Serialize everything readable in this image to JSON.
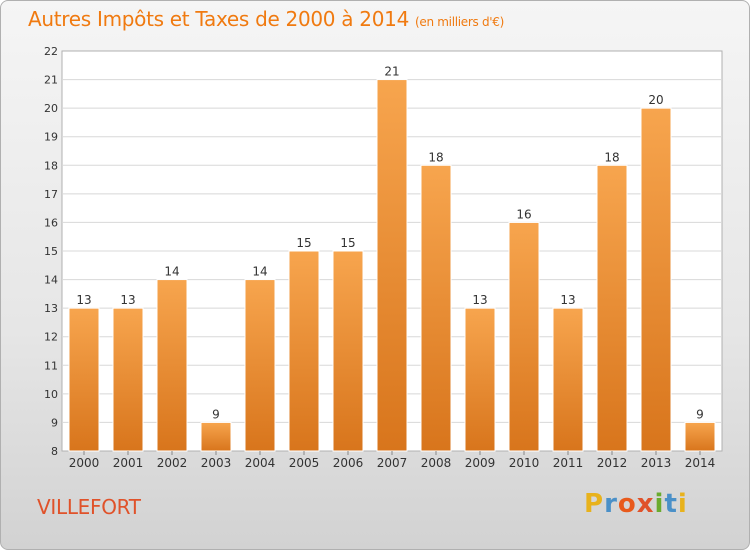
{
  "header": {
    "title": "Autres Impôts et Taxes de 2000 à 2014",
    "subtitle": "(en milliers d'€)"
  },
  "footer": {
    "city": "VILLEFORT",
    "logo": "Proxiti"
  },
  "colors": {
    "title": "#f07a10",
    "city": "#e0522a",
    "bar_light": "#f7a54e",
    "bar_dark": "#d8751c",
    "logo_letters": [
      "#e8b21c",
      "#4a90c8",
      "#e85a1c",
      "#e0522a",
      "#6aab2e",
      "#4a90c8",
      "#e8b21c"
    ]
  },
  "chart_data": {
    "type": "bar",
    "title": "Autres Impôts et Taxes de 2000 à 2014",
    "subtitle": "(en milliers d'€)",
    "categories": [
      "2000",
      "2001",
      "2002",
      "2003",
      "2004",
      "2005",
      "2006",
      "2007",
      "2008",
      "2009",
      "2010",
      "2011",
      "2012",
      "2013",
      "2014"
    ],
    "values": [
      13,
      13,
      14,
      9,
      14,
      15,
      15,
      21,
      18,
      13,
      16,
      13,
      18,
      20,
      9
    ],
    "ylim": [
      8,
      22
    ],
    "yticks": [
      8,
      9,
      10,
      11,
      12,
      13,
      14,
      15,
      16,
      17,
      18,
      19,
      20,
      21,
      22
    ],
    "grid": true,
    "data_labels": true
  }
}
